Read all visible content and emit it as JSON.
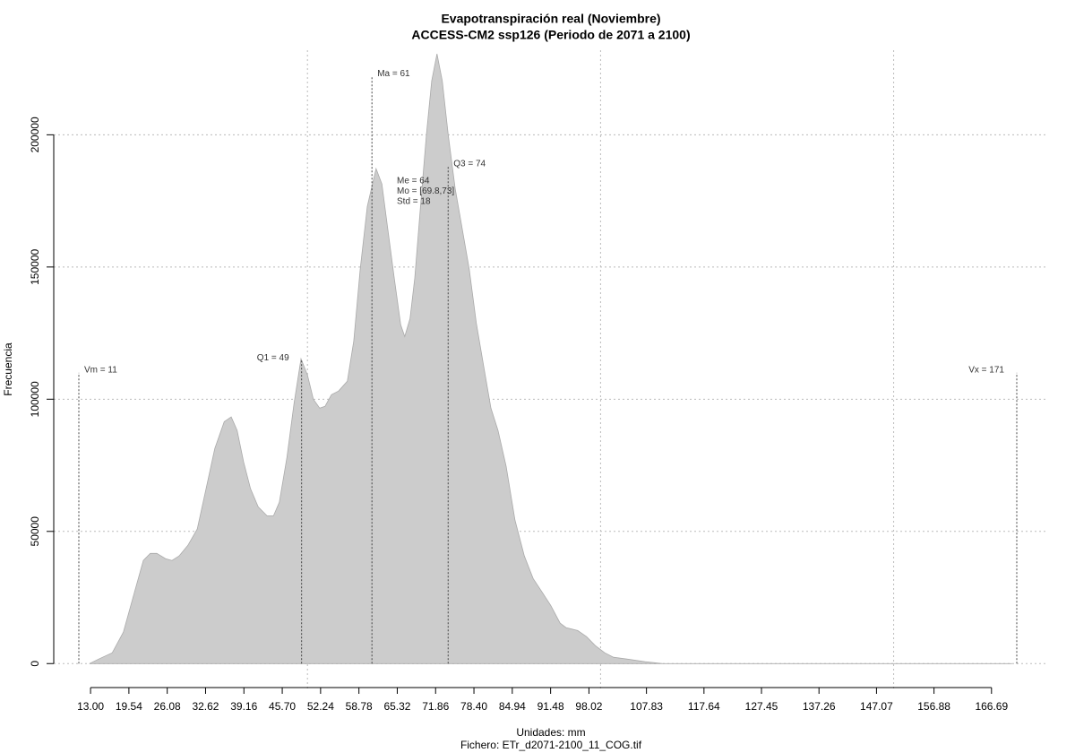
{
  "chart_data": {
    "type": "area",
    "title": "Evapotranspiración real (Noviembre)",
    "subtitle": "ACCESS-CM2 ssp126 (Periodo de 2071 a 2100)",
    "x_label": "Unidades: mm",
    "caption": "Fichero: ETr_d2071-2100_11_COG.tif",
    "y_label": "Frecuencia",
    "color": "#cccccc",
    "x": [
      12.8,
      14.4,
      16.7,
      18.6,
      20.5,
      22.0,
      23.2,
      24.3,
      25.8,
      26.9,
      28.1,
      29.6,
      31.2,
      32.7,
      34.2,
      35.8,
      37.0,
      38.0,
      39.1,
      40.3,
      41.6,
      43.1,
      44.2,
      45.2,
      46.5,
      47.7,
      48.9,
      50.0,
      51.0,
      52.1,
      53.0,
      54.1,
      55.3,
      56.8,
      57.9,
      59.0,
      60.2,
      61.1,
      61.7,
      62.7,
      63.6,
      64.8,
      65.9,
      66.6,
      67.5,
      68.3,
      69.4,
      70.3,
      71.2,
      72.1,
      73.0,
      74.0,
      75.2,
      76.4,
      77.6,
      78.8,
      80.1,
      81.3,
      82.5,
      83.9,
      85.4,
      87.0,
      88.5,
      90.0,
      91.5,
      93.1,
      94.1,
      96.1,
      97.6,
      99.1,
      100.7,
      102.2,
      104.5,
      107.6,
      110.6,
      115.2,
      170.2
    ],
    "values": [
      0,
      1700,
      4100,
      11900,
      27100,
      39000,
      41700,
      41700,
      39700,
      39000,
      40700,
      44700,
      50900,
      66100,
      81400,
      91500,
      93300,
      88200,
      76300,
      66100,
      59300,
      55900,
      55900,
      61000,
      78000,
      98300,
      115300,
      109200,
      100000,
      96600,
      97300,
      101700,
      103100,
      106800,
      122000,
      149200,
      172900,
      181400,
      187200,
      181400,
      166100,
      145800,
      128100,
      123700,
      130500,
      145800,
      176300,
      200100,
      220400,
      230600,
      220400,
      200100,
      179700,
      164400,
      149200,
      128800,
      111900,
      96600,
      88200,
      74600,
      54200,
      40700,
      32200,
      27100,
      22000,
      15300,
      13600,
      12500,
      10200,
      6800,
      4100,
      2400,
      1700,
      700,
      0,
      0,
      0
    ],
    "xlim": [
      11,
      171
    ],
    "ylim": [
      -5000,
      232000
    ],
    "xticks": [
      {
        "value": 13,
        "label": "13.00"
      },
      19.54,
      26.08,
      32.62,
      39.16,
      {
        "value": 45.7,
        "label": "45.70"
      },
      52.24,
      58.78,
      65.32,
      71.86,
      {
        "value": 78.4,
        "label": "78.40"
      },
      84.94,
      91.48,
      98.02,
      107.83,
      117.64,
      127.45,
      137.26,
      147.07,
      156.88,
      166.69
    ],
    "yticks": [
      0,
      50000,
      100000,
      150000,
      200000
    ],
    "xgrid": [
      50,
      100,
      150
    ],
    "grid": true,
    "annotations": [
      {
        "text": "Vm = 11",
        "x": 11,
        "y": 110000
      },
      {
        "text": "Q1 = 49",
        "x": 49,
        "y": 114600
      },
      {
        "text": "Ma = 61",
        "x": 61,
        "y": 222000
      },
      {
        "text": "Q3 = 74",
        "x": 74,
        "y": 188000
      },
      {
        "text": "Vx = 171",
        "x": 171,
        "y": 110000
      }
    ],
    "stats": [
      "Me = 64",
      "Mo = [69.8,73]",
      "Std = 18"
    ]
  }
}
